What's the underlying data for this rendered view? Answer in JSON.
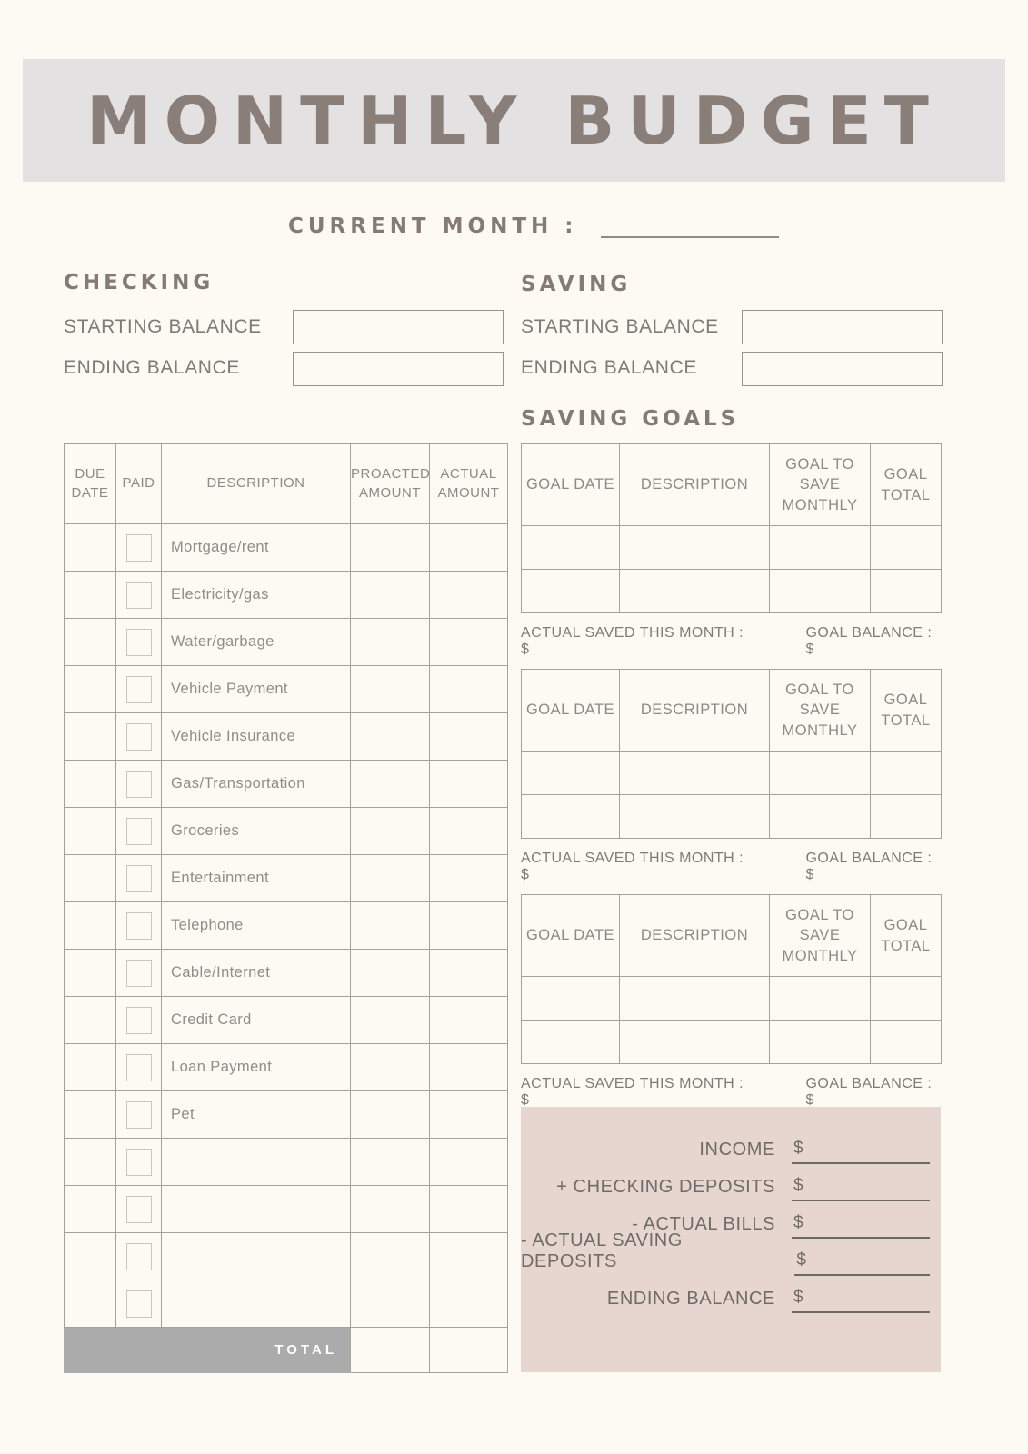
{
  "page": {
    "title": "MONTHLY BUDGET",
    "current_month_label": "CURRENT MONTH :"
  },
  "checking": {
    "heading": "CHECKING",
    "starting_balance_label": "STARTING BALANCE",
    "ending_balance_label": "ENDING BALANCE"
  },
  "saving": {
    "heading": "SAVING",
    "starting_balance_label": "STARTING BALANCE",
    "ending_balance_label": "ENDING BALANCE"
  },
  "bills_table": {
    "headers": [
      "DUE DATE",
      "PAID",
      "DESCRIPTION",
      "PROACTED AMOUNT",
      "ACTUAL AMOUNT"
    ],
    "rows": [
      "Mortgage/rent",
      "Electricity/gas",
      "Water/garbage",
      "Vehicle Payment",
      "Vehicle Insurance",
      "Gas/Transportation",
      "Groceries",
      "Entertainment",
      "Telephone",
      "Cable/Internet",
      "Credit Card",
      "Loan Payment",
      "Pet",
      "",
      "",
      "",
      ""
    ],
    "total_label": "TOTAL"
  },
  "saving_goals": {
    "heading": "SAVING GOALS",
    "headers": [
      "GOAL DATE",
      "DESCRIPTION",
      "GOAL TO SAVE MONTHLY",
      "GOAL TOTAL"
    ],
    "tables": [
      {
        "caption_saved": "ACTUAL SAVED THIS MONTH : $",
        "caption_balance": "GOAL BALANCE : $"
      },
      {
        "caption_saved": "ACTUAL SAVED THIS MONTH : $",
        "caption_balance": "GOAL BALANCE : $"
      },
      {
        "caption_saved": "ACTUAL SAVED THIS MONTH : $",
        "caption_balance": "GOAL BALANCE : $"
      }
    ]
  },
  "summary": {
    "rows": [
      {
        "label": "INCOME",
        "dollar": "$"
      },
      {
        "label": "+ CHECKING DEPOSITS",
        "dollar": "$"
      },
      {
        "label": "- ACTUAL BILLS",
        "dollar": "$"
      },
      {
        "label": "- ACTUAL SAVING DEPOSITS",
        "dollar": "$"
      },
      {
        "label": "ENDING BALANCE",
        "dollar": "$"
      }
    ]
  },
  "colors": {
    "page_bg": "#fcfaf2",
    "banner_bg": "#e4e1e3",
    "title_color": "#8a7e78",
    "heading_color": "#857a74",
    "text_color": "#7d7c78",
    "border_color": "#a3a29e",
    "checkbox_border": "#c9c6c0",
    "total_bar_bg": "#ababab",
    "total_bar_text": "#ffffff",
    "pink_bg": "#e7d5d0",
    "line_color": "#6b6a66"
  }
}
